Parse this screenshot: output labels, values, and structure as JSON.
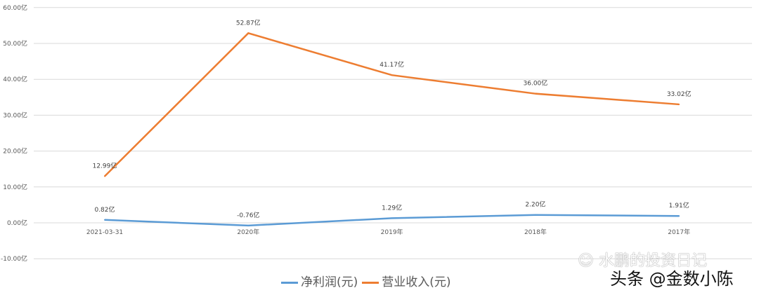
{
  "chart_data": {
    "type": "line",
    "categories": [
      "2021-03-31",
      "2020年",
      "2019年",
      "2018年",
      "2017年"
    ],
    "series": [
      {
        "name": "净利润(元)",
        "color": "#5b9bd5",
        "values": [
          0.82,
          -0.76,
          1.29,
          2.2,
          1.91
        ],
        "labels": [
          "0.82亿",
          "-0.76亿",
          "1.29亿",
          "2.20亿",
          "1.91亿"
        ]
      },
      {
        "name": "营业收入(元)",
        "color": "#ed7d31",
        "values": [
          12.99,
          52.87,
          41.17,
          36.0,
          33.02
        ],
        "labels": [
          "12.99亿",
          "52.87亿",
          "41.17亿",
          "36.00亿",
          "33.02亿"
        ]
      }
    ],
    "yticks": [
      "-10.00亿",
      "0.00亿",
      "10.00亿",
      "20.00亿",
      "30.00亿",
      "40.00亿",
      "50.00亿",
      "60.00亿"
    ],
    "ylim": [
      -10,
      60
    ],
    "unit": "亿",
    "grid": true,
    "legend": "bottom"
  },
  "watermark": {
    "line1": "水鹏的投资日记",
    "line2": "头条 @金数小陈"
  }
}
